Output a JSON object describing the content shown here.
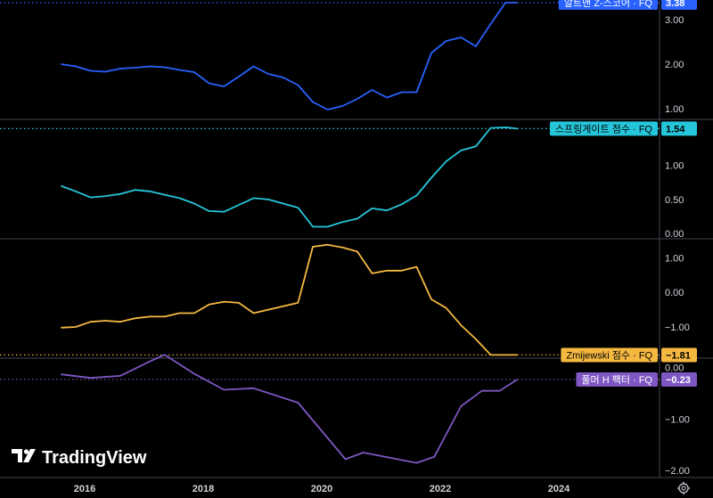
{
  "brand": {
    "name": "TradingView",
    "logo_icon": "tradingview-logo-icon"
  },
  "settings_icon": "gear-icon",
  "x_axis": {
    "ticks": [
      "2016",
      "2018",
      "2020",
      "2022",
      "2024"
    ]
  },
  "chart_data": [
    {
      "type": "line",
      "title": "알트맨 Z-스코어 · FQ",
      "color": "#2962ff",
      "last_value": "3.38",
      "ylim": [
        0.8,
        3.4
      ],
      "yticks": [
        "3.00",
        "2.00",
        "1.00"
      ],
      "x": [
        2015.6,
        2015.85,
        2016.1,
        2016.35,
        2016.6,
        2016.85,
        2017.1,
        2017.35,
        2017.6,
        2017.85,
        2018.1,
        2018.35,
        2018.6,
        2018.85,
        2019.1,
        2019.35,
        2019.6,
        2019.85,
        2020.1,
        2020.35,
        2020.6,
        2020.85,
        2021.1,
        2021.35,
        2021.6,
        2021.85,
        2022.1,
        2022.35,
        2022.6,
        2022.85,
        2023.1,
        2023.3
      ],
      "values": [
        2.0,
        1.95,
        1.85,
        1.83,
        1.9,
        1.92,
        1.95,
        1.93,
        1.87,
        1.82,
        1.57,
        1.5,
        1.72,
        1.95,
        1.78,
        1.7,
        1.53,
        1.15,
        0.98,
        1.06,
        1.22,
        1.42,
        1.25,
        1.37,
        1.37,
        2.25,
        2.52,
        2.6,
        2.4,
        2.9,
        3.38,
        3.38
      ]
    },
    {
      "type": "line",
      "title": "스프링게이트 점수 · FQ",
      "color": "#26c6da",
      "last_value": "1.54",
      "ylim": [
        -0.05,
        1.65
      ],
      "yticks": [
        "1.00",
        "0.50",
        "0.00"
      ],
      "x": [
        2015.6,
        2015.85,
        2016.1,
        2016.35,
        2016.6,
        2016.85,
        2017.1,
        2017.35,
        2017.6,
        2017.85,
        2018.1,
        2018.35,
        2018.6,
        2018.85,
        2019.1,
        2019.35,
        2019.6,
        2019.85,
        2020.1,
        2020.35,
        2020.6,
        2020.85,
        2021.1,
        2021.35,
        2021.6,
        2021.85,
        2022.1,
        2022.35,
        2022.6,
        2022.85,
        2023.1,
        2023.3
      ],
      "values": [
        0.7,
        0.62,
        0.53,
        0.55,
        0.58,
        0.64,
        0.62,
        0.57,
        0.52,
        0.44,
        0.33,
        0.32,
        0.42,
        0.52,
        0.5,
        0.44,
        0.38,
        0.1,
        0.1,
        0.17,
        0.22,
        0.37,
        0.34,
        0.43,
        0.56,
        0.82,
        1.06,
        1.22,
        1.28,
        1.55,
        1.56,
        1.54
      ]
    },
    {
      "type": "line",
      "title": "Zmijewski 점수 · FQ",
      "color": "#f5b942",
      "last_value": "−1.81",
      "ylim": [
        -1.85,
        1.5
      ],
      "yticks": [
        "1.00",
        "0.00",
        "−1.00"
      ],
      "x": [
        2015.6,
        2015.85,
        2016.1,
        2016.35,
        2016.6,
        2016.85,
        2017.1,
        2017.35,
        2017.6,
        2017.85,
        2018.1,
        2018.35,
        2018.6,
        2018.85,
        2019.1,
        2019.35,
        2019.6,
        2019.85,
        2020.1,
        2020.35,
        2020.6,
        2020.85,
        2021.1,
        2021.35,
        2021.6,
        2021.85,
        2022.1,
        2022.35,
        2022.6,
        2022.85,
        2023.1,
        2023.3
      ],
      "values": [
        -1.02,
        -1.0,
        -0.85,
        -0.82,
        -0.85,
        -0.75,
        -0.7,
        -0.7,
        -0.6,
        -0.6,
        -0.35,
        -0.27,
        -0.3,
        -0.6,
        -0.5,
        -0.4,
        -0.3,
        1.32,
        1.38,
        1.3,
        1.18,
        0.55,
        0.63,
        0.63,
        0.74,
        -0.2,
        -0.45,
        -0.95,
        -1.35,
        -1.81,
        -1.81,
        -1.81
      ]
    },
    {
      "type": "line",
      "title": "풀머 H 팩터 · FQ",
      "color": "#7e57c2",
      "last_value": "−0.23",
      "ylim": [
        -2.1,
        0.15
      ],
      "yticks": [
        "0.00",
        "−1.00",
        "−2.00"
      ],
      "x": [
        2015.6,
        2016.1,
        2016.6,
        2017.1,
        2017.35,
        2017.85,
        2018.35,
        2018.85,
        2019.6,
        2020.4,
        2020.7,
        2021.6,
        2021.9,
        2022.35,
        2022.7,
        2023.0,
        2023.3
      ],
      "values": [
        -0.13,
        -0.2,
        -0.16,
        0.12,
        0.25,
        -0.12,
        -0.43,
        -0.4,
        -0.68,
        -1.78,
        -1.65,
        -1.85,
        -1.73,
        -0.75,
        -0.45,
        -0.45,
        -0.23
      ]
    }
  ]
}
